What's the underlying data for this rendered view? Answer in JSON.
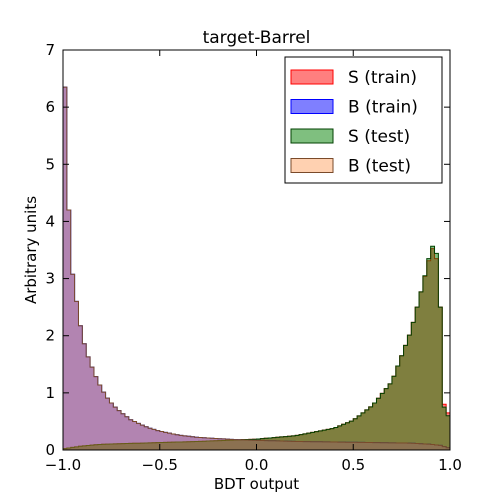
{
  "chart_data": {
    "type": "histogram",
    "title": "target-Barrel",
    "xlabel": "BDT output",
    "ylabel": "Arbitrary units",
    "xlim": [
      -1.0,
      1.0
    ],
    "ylim": [
      0,
      7
    ],
    "xticks": [
      "−1.0",
      "−0.5",
      "0.0",
      "0.5",
      "1.0"
    ],
    "xtick_values": [
      -1.0,
      -0.5,
      0.0,
      0.5,
      1.0
    ],
    "yticks": [
      "0",
      "1",
      "2",
      "3",
      "4",
      "5",
      "6",
      "7"
    ],
    "ytick_values": [
      0,
      1,
      2,
      3,
      4,
      5,
      6,
      7
    ],
    "grid": false,
    "legend_position": "top-right",
    "x_range": [
      -1.0,
      1.0
    ],
    "series": [
      {
        "name": "S (train)",
        "style": "filled",
        "color": "#ff0000",
        "alpha": 0.5,
        "edge": "#ff0000",
        "anchors": [
          [
            -1.0,
            0.02
          ],
          [
            -0.96,
            0.04
          ],
          [
            -0.9,
            0.07
          ],
          [
            -0.8,
            0.1
          ],
          [
            -0.7,
            0.11
          ],
          [
            -0.5,
            0.13
          ],
          [
            -0.3,
            0.15
          ],
          [
            0.0,
            0.19
          ],
          [
            0.2,
            0.25
          ],
          [
            0.4,
            0.38
          ],
          [
            0.5,
            0.52
          ],
          [
            0.6,
            0.78
          ],
          [
            0.7,
            1.2
          ],
          [
            0.8,
            2.1
          ],
          [
            0.86,
            2.9
          ],
          [
            0.9,
            3.45
          ],
          [
            0.92,
            3.6
          ],
          [
            0.94,
            3.1
          ],
          [
            0.95,
            2.5
          ],
          [
            0.97,
            0.8
          ],
          [
            0.99,
            0.65
          ]
        ]
      },
      {
        "name": "B (train)",
        "style": "filled",
        "color": "#0000ff",
        "alpha": 0.5,
        "edge": "#0000ff",
        "anchors": [
          [
            -1.0,
            2.05
          ],
          [
            -0.99,
            6.35
          ],
          [
            -0.98,
            6.3
          ],
          [
            -0.97,
            4.2
          ],
          [
            -0.96,
            3.3
          ],
          [
            -0.94,
            2.85
          ],
          [
            -0.92,
            2.35
          ],
          [
            -0.9,
            2.0
          ],
          [
            -0.88,
            1.72
          ],
          [
            -0.85,
            1.45
          ],
          [
            -0.82,
            1.2
          ],
          [
            -0.78,
            0.95
          ],
          [
            -0.74,
            0.78
          ],
          [
            -0.7,
            0.66
          ],
          [
            -0.65,
            0.53
          ],
          [
            -0.6,
            0.45
          ],
          [
            -0.55,
            0.38
          ],
          [
            -0.5,
            0.33
          ],
          [
            -0.4,
            0.26
          ],
          [
            -0.3,
            0.22
          ],
          [
            -0.2,
            0.2
          ],
          [
            -0.1,
            0.18
          ],
          [
            0.0,
            0.17
          ],
          [
            0.2,
            0.15
          ],
          [
            0.4,
            0.14
          ],
          [
            0.6,
            0.13
          ],
          [
            0.8,
            0.12
          ],
          [
            0.9,
            0.1
          ],
          [
            0.95,
            0.08
          ],
          [
            0.99,
            0.04
          ]
        ]
      },
      {
        "name": "S (test)",
        "style": "filled",
        "color": "#008000",
        "alpha": 0.5,
        "edge": "#004000",
        "anchors": [
          [
            -1.0,
            0.02
          ],
          [
            -0.96,
            0.04
          ],
          [
            -0.9,
            0.07
          ],
          [
            -0.8,
            0.1
          ],
          [
            -0.7,
            0.11
          ],
          [
            -0.5,
            0.13
          ],
          [
            -0.3,
            0.15
          ],
          [
            0.0,
            0.19
          ],
          [
            0.2,
            0.25
          ],
          [
            0.4,
            0.38
          ],
          [
            0.5,
            0.52
          ],
          [
            0.6,
            0.78
          ],
          [
            0.7,
            1.2
          ],
          [
            0.8,
            2.1
          ],
          [
            0.86,
            2.9
          ],
          [
            0.9,
            3.5
          ],
          [
            0.92,
            3.63
          ],
          [
            0.94,
            3.25
          ],
          [
            0.95,
            2.5
          ],
          [
            0.97,
            0.75
          ],
          [
            0.99,
            0.6
          ]
        ]
      },
      {
        "name": "B (test)",
        "style": "filled",
        "color": "#ff8c3c",
        "alpha": 0.4,
        "edge": "#7a4a2a",
        "anchors": [
          [
            -1.0,
            2.05
          ],
          [
            -0.99,
            6.35
          ],
          [
            -0.98,
            6.3
          ],
          [
            -0.97,
            4.2
          ],
          [
            -0.96,
            3.3
          ],
          [
            -0.94,
            2.85
          ],
          [
            -0.92,
            2.35
          ],
          [
            -0.9,
            2.0
          ],
          [
            -0.88,
            1.72
          ],
          [
            -0.85,
            1.45
          ],
          [
            -0.82,
            1.2
          ],
          [
            -0.78,
            0.95
          ],
          [
            -0.74,
            0.78
          ],
          [
            -0.7,
            0.66
          ],
          [
            -0.65,
            0.53
          ],
          [
            -0.6,
            0.45
          ],
          [
            -0.55,
            0.38
          ],
          [
            -0.5,
            0.33
          ],
          [
            -0.4,
            0.26
          ],
          [
            -0.3,
            0.22
          ],
          [
            -0.2,
            0.2
          ],
          [
            -0.1,
            0.18
          ],
          [
            0.0,
            0.17
          ],
          [
            0.2,
            0.15
          ],
          [
            0.4,
            0.14
          ],
          [
            0.6,
            0.13
          ],
          [
            0.8,
            0.12
          ],
          [
            0.9,
            0.1
          ],
          [
            0.95,
            0.08
          ],
          [
            0.99,
            0.04
          ]
        ]
      }
    ]
  }
}
